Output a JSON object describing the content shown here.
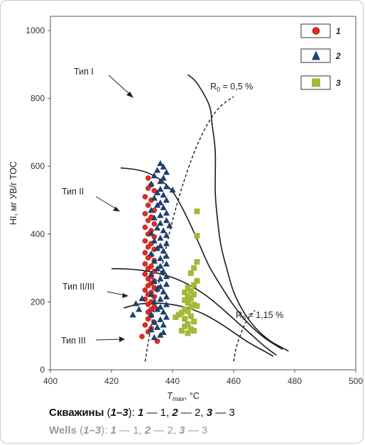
{
  "chart_data": {
    "type": "scatter",
    "ylabel": "HI, мг УВ/г ТОС",
    "xlabel": {
      "sym": "T",
      "sub": "max",
      "unit": ", °C"
    },
    "xlim": [
      400,
      500
    ],
    "ylim": [
      0,
      1000
    ],
    "xticks": [
      "400",
      "420",
      "440",
      "460",
      "480",
      "500"
    ],
    "yticks": [
      "0",
      "200",
      "400",
      "600",
      "800",
      "1000"
    ],
    "grid": false,
    "legend_position": "top-right",
    "legend": [
      "1",
      "2",
      "3"
    ],
    "colors": {
      "well1": "#e02b20",
      "well2": "#1f3f6e",
      "well3": "#a5b83a"
    },
    "type_labels": [
      "Тип I",
      "Тип II",
      "Тип II/III",
      "Тип III"
    ],
    "ro_labels": [
      {
        "sym": "R",
        "sub": "0",
        "text": " = 0,5 %"
      },
      {
        "sym": "R",
        "sub": "0",
        "text": " = 1,15 %"
      }
    ],
    "curves": [
      {
        "name": "Тип I",
        "points": [
          [
            445,
            870
          ],
          [
            448,
            845
          ],
          [
            452,
            780
          ],
          [
            453,
            720
          ],
          [
            454,
            640
          ],
          [
            454,
            520
          ],
          [
            455,
            420
          ],
          [
            456,
            360
          ],
          [
            458,
            290
          ],
          [
            460,
            230
          ],
          [
            463,
            175
          ],
          [
            467,
            125
          ],
          [
            472,
            85
          ],
          [
            478,
            55
          ]
        ]
      },
      {
        "name": "Тип II",
        "points": [
          [
            423,
            595
          ],
          [
            428,
            590
          ],
          [
            432,
            580
          ],
          [
            436,
            560
          ],
          [
            440,
            525
          ],
          [
            443,
            480
          ],
          [
            446,
            425
          ],
          [
            449,
            365
          ],
          [
            452,
            305
          ],
          [
            456,
            245
          ],
          [
            460,
            190
          ],
          [
            465,
            135
          ],
          [
            470,
            95
          ],
          [
            476,
            60
          ]
        ]
      },
      {
        "name": "Тип II/III",
        "points": [
          [
            420,
            298
          ],
          [
            425,
            297
          ],
          [
            430,
            293
          ],
          [
            435,
            285
          ],
          [
            440,
            272
          ],
          [
            445,
            252
          ],
          [
            450,
            225
          ],
          [
            455,
            190
          ],
          [
            460,
            150
          ],
          [
            465,
            110
          ],
          [
            470,
            70
          ],
          [
            474,
            43
          ]
        ]
      },
      {
        "name": "Тип III",
        "points": [
          [
            424,
            182
          ],
          [
            428,
            192
          ],
          [
            432,
            196
          ],
          [
            436,
            196
          ],
          [
            440,
            192
          ],
          [
            445,
            182
          ],
          [
            450,
            165
          ],
          [
            455,
            140
          ],
          [
            460,
            110
          ],
          [
            465,
            80
          ],
          [
            470,
            55
          ],
          [
            473,
            40
          ]
        ]
      }
    ],
    "ro_lines": [
      {
        "name": "R0 = 0,5 %",
        "points": [
          [
            431,
            25
          ],
          [
            433,
            130
          ],
          [
            436,
            280
          ],
          [
            440,
            440
          ],
          [
            445,
            590
          ],
          [
            450,
            700
          ],
          [
            455,
            770
          ],
          [
            460,
            805
          ]
        ]
      },
      {
        "name": "R0 = 1,15 %",
        "points": [
          [
            460,
            25
          ],
          [
            461,
            70
          ],
          [
            463,
            120
          ],
          [
            465,
            155
          ],
          [
            467,
            175
          ]
        ]
      }
    ],
    "series": [
      {
        "name": "1",
        "marker": "circle",
        "points": [
          [
            432,
            565
          ],
          [
            433,
            545
          ],
          [
            432,
            535
          ],
          [
            434,
            528
          ],
          [
            431,
            510
          ],
          [
            433,
            500
          ],
          [
            432,
            485
          ],
          [
            434,
            470
          ],
          [
            431,
            460
          ],
          [
            433,
            450
          ],
          [
            432,
            440
          ],
          [
            434,
            430
          ],
          [
            431,
            420
          ],
          [
            433,
            410
          ],
          [
            432,
            400
          ],
          [
            434,
            392
          ],
          [
            431,
            380
          ],
          [
            433,
            372
          ],
          [
            432,
            362
          ],
          [
            434,
            355
          ],
          [
            431,
            345
          ],
          [
            433,
            338
          ],
          [
            432,
            330
          ],
          [
            434,
            322
          ],
          [
            431,
            312
          ],
          [
            433,
            305
          ],
          [
            432,
            298
          ],
          [
            434,
            290
          ],
          [
            431,
            282
          ],
          [
            433,
            275
          ],
          [
            432,
            268
          ],
          [
            434,
            262
          ],
          [
            433,
            255
          ],
          [
            432,
            248
          ],
          [
            434,
            242
          ],
          [
            431,
            235
          ],
          [
            433,
            228
          ],
          [
            432,
            222
          ],
          [
            434,
            215
          ],
          [
            431,
            208
          ],
          [
            433,
            200
          ],
          [
            432,
            193
          ],
          [
            434,
            186
          ],
          [
            433,
            178
          ],
          [
            432,
            170
          ],
          [
            433,
            160
          ],
          [
            432,
            150
          ],
          [
            434,
            140
          ],
          [
            431,
            132
          ],
          [
            433,
            122
          ],
          [
            432,
            112
          ],
          [
            430,
            98
          ],
          [
            435,
            84
          ]
        ]
      },
      {
        "name": "2",
        "marker": "triangle",
        "points": [
          [
            436,
            608
          ],
          [
            437,
            598
          ],
          [
            435,
            588
          ],
          [
            438,
            582
          ],
          [
            434,
            572
          ],
          [
            437,
            565
          ],
          [
            436,
            555
          ],
          [
            433,
            548
          ],
          [
            438,
            540
          ],
          [
            436,
            532
          ],
          [
            440,
            530
          ],
          [
            435,
            522
          ],
          [
            437,
            515
          ],
          [
            434,
            506
          ],
          [
            438,
            500
          ],
          [
            436,
            492
          ],
          [
            435,
            485
          ],
          [
            437,
            478
          ],
          [
            433,
            470
          ],
          [
            438,
            462
          ],
          [
            436,
            455
          ],
          [
            434,
            448
          ],
          [
            438,
            440
          ],
          [
            436,
            432
          ],
          [
            439,
            425
          ],
          [
            435,
            418
          ],
          [
            437,
            410
          ],
          [
            433,
            402
          ],
          [
            438,
            396
          ],
          [
            436,
            388
          ],
          [
            434,
            380
          ],
          [
            438,
            372
          ],
          [
            436,
            365
          ],
          [
            435,
            358
          ],
          [
            437,
            350
          ],
          [
            433,
            342
          ],
          [
            438,
            335
          ],
          [
            436,
            328
          ],
          [
            434,
            320
          ],
          [
            438,
            312
          ],
          [
            436,
            305
          ],
          [
            435,
            298
          ],
          [
            437,
            290
          ],
          [
            433,
            282
          ],
          [
            438,
            275
          ],
          [
            436,
            268
          ],
          [
            434,
            260
          ],
          [
            438,
            252
          ],
          [
            436,
            245
          ],
          [
            435,
            238
          ],
          [
            437,
            230
          ],
          [
            433,
            222
          ],
          [
            438,
            215
          ],
          [
            436,
            208
          ],
          [
            434,
            200
          ],
          [
            438,
            192
          ],
          [
            436,
            185
          ],
          [
            435,
            178
          ],
          [
            437,
            170
          ],
          [
            433,
            162
          ],
          [
            438,
            155
          ],
          [
            436,
            148
          ],
          [
            434,
            140
          ],
          [
            437,
            132
          ],
          [
            435,
            125
          ],
          [
            433,
            118
          ],
          [
            437,
            110
          ],
          [
            436,
            102
          ],
          [
            434,
            95
          ],
          [
            427,
            162
          ],
          [
            429,
            178
          ],
          [
            428,
            195
          ],
          [
            430,
            210
          ]
        ]
      },
      {
        "name": "3",
        "marker": "square",
        "points": [
          [
            448,
            467
          ],
          [
            448,
            395
          ],
          [
            448,
            318
          ],
          [
            447,
            300
          ],
          [
            446,
            285
          ],
          [
            448,
            262
          ],
          [
            447,
            250
          ],
          [
            445,
            242
          ],
          [
            446,
            232
          ],
          [
            444,
            228
          ],
          [
            447,
            222
          ],
          [
            445,
            215
          ],
          [
            446,
            210
          ],
          [
            444,
            205
          ],
          [
            445,
            198
          ],
          [
            447,
            192
          ],
          [
            446,
            185
          ],
          [
            444,
            178
          ],
          [
            445,
            172
          ],
          [
            443,
            168
          ],
          [
            442,
            162
          ],
          [
            446,
            158
          ],
          [
            444,
            150
          ],
          [
            447,
            142
          ],
          [
            445,
            135
          ],
          [
            444,
            128
          ],
          [
            446,
            120
          ],
          [
            443,
            115
          ],
          [
            445,
            108
          ],
          [
            447,
            115
          ],
          [
            448,
            188
          ],
          [
            441,
            155
          ]
        ]
      }
    ]
  },
  "caption_ru": {
    "word": "Скважины",
    "paren_open": " (",
    "range": "1–3",
    "paren_close": "): ",
    "k1": "1",
    "v1": " — 1, ",
    "k2": "2",
    "v2": " — 2, ",
    "k3": "3",
    "v3": " — 3"
  },
  "caption_en": {
    "word": "Wells",
    "paren_open": " (",
    "range": "1–3",
    "paren_close": "): ",
    "k1": "1",
    "v1": " — 1, ",
    "k2": "2",
    "v2": " — 2, ",
    "k3": "3",
    "v3": " — 3"
  }
}
